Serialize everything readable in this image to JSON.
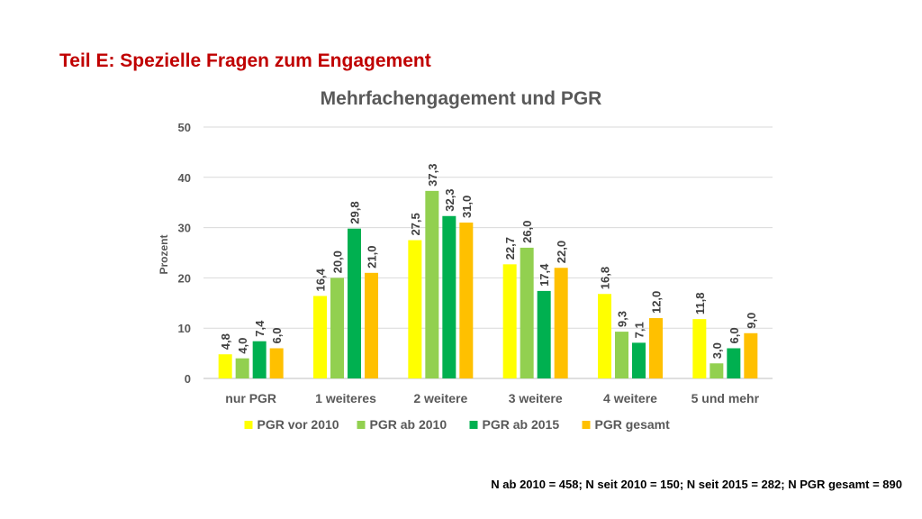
{
  "slide": {
    "title": "Teil E: Spezielle Fragen zum Engagement",
    "footnote": "N ab 2010 = 458; N seit 2010 = 150; N seit 2015 = 282; N PGR gesamt = 890"
  },
  "chart_data": {
    "type": "bar",
    "title": "Mehrfachengagement und PGR",
    "xlabel": "",
    "ylabel": "Prozent",
    "ylim": [
      0,
      50
    ],
    "yticks": [
      "0",
      "10",
      "20",
      "30",
      "40",
      "50"
    ],
    "grid": true,
    "legend_position": "bottom",
    "categories": [
      "nur PGR",
      "1 weiteres",
      "2 weitere",
      "3 weitere",
      "4 weitere",
      "5 und mehr"
    ],
    "series": [
      {
        "name": "PGR vor 2010",
        "color": "#ffff00",
        "values": [
          4.8,
          16.4,
          27.5,
          22.7,
          16.8,
          11.8
        ],
        "labels": [
          "4,8",
          "16,4",
          "27,5",
          "22,7",
          "16,8",
          "11,8"
        ]
      },
      {
        "name": "PGR ab 2010",
        "color": "#92d050",
        "values": [
          4.0,
          20.0,
          37.3,
          26.0,
          9.3,
          3.0
        ],
        "labels": [
          "4,0",
          "20,0",
          "37,3",
          "26,0",
          "9,3",
          "3,0"
        ]
      },
      {
        "name": "PGR ab 2015",
        "color": "#00b050",
        "values": [
          7.4,
          29.8,
          32.3,
          17.4,
          7.1,
          6.0
        ],
        "labels": [
          "7,4",
          "29,8",
          "32,3",
          "17,4",
          "7,1",
          "6,0"
        ]
      },
      {
        "name": "PGR gesamt",
        "color": "#ffc000",
        "values": [
          6.0,
          21.0,
          31.0,
          22.0,
          12.0,
          9.0
        ],
        "labels": [
          "6,0",
          "21,0",
          "31,0",
          "22,0",
          "12,0",
          "9,0"
        ]
      }
    ]
  }
}
